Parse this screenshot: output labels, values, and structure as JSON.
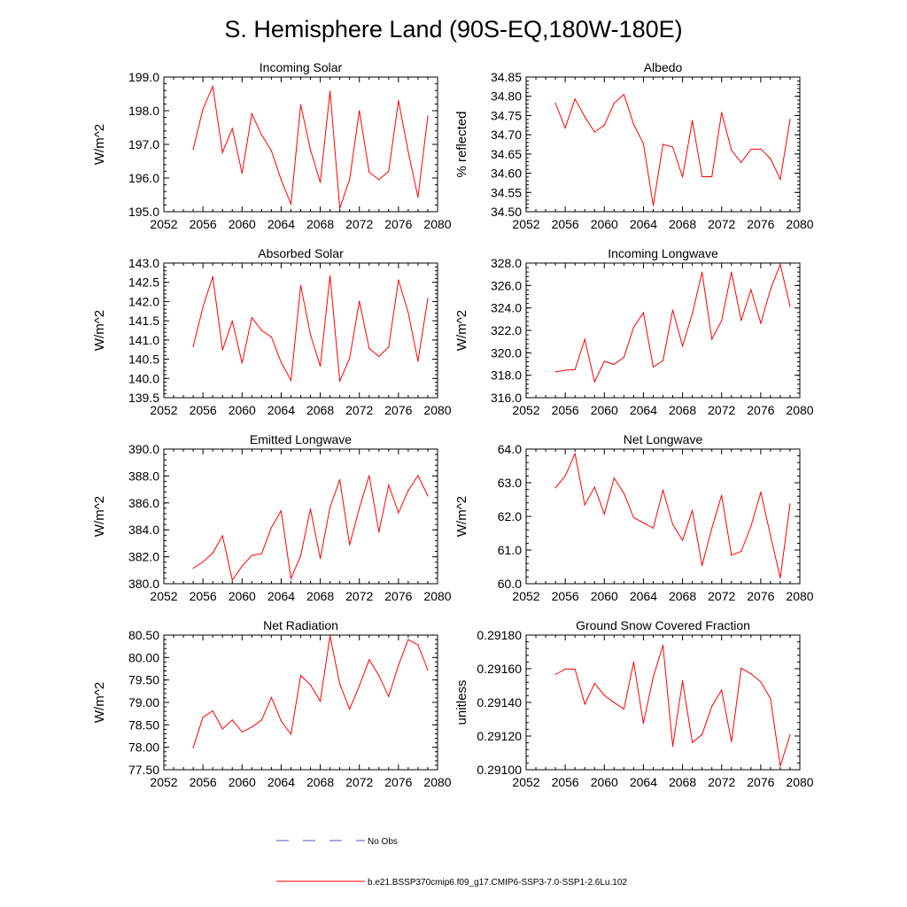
{
  "title": "S. Hemisphere Land (90S-EQ,180W-180E)",
  "line_color": "#ff0000",
  "obs_color": "#4a57c8",
  "legend": {
    "obs_label": "No Obs",
    "model_label": "b.e21.BSSP370cmip6.f09_g17.CMIP6-SSP3-7.0-SSP1-2.6Lu.102"
  },
  "chart_data": [
    {
      "type": "line",
      "title": "Incoming Solar",
      "ylabel": "W/m^2",
      "xlim": [
        2052,
        2080
      ],
      "xticks": [
        2052,
        2056,
        2060,
        2064,
        2068,
        2072,
        2076,
        2080
      ],
      "ylim": [
        195.0,
        199.0
      ],
      "yticks": [
        "195.0",
        "196.0",
        "197.0",
        "198.0",
        "199.0"
      ],
      "yminor": 0.2,
      "x": [
        2055,
        2056,
        2057,
        2058,
        2059,
        2060,
        2061,
        2062,
        2063,
        2064,
        2065,
        2066,
        2067,
        2068,
        2069,
        2070,
        2071,
        2072,
        2073,
        2074,
        2075,
        2076,
        2077,
        2078,
        2079
      ],
      "values": [
        196.85,
        198.05,
        198.72,
        196.76,
        197.47,
        196.14,
        197.91,
        197.28,
        196.81,
        195.95,
        195.22,
        198.18,
        196.84,
        195.87,
        198.58,
        195.1,
        195.96,
        198.0,
        196.17,
        195.95,
        196.2,
        198.3,
        196.78,
        195.43,
        197.84
      ]
    },
    {
      "type": "line",
      "title": "Albedo",
      "ylabel": "% reflected",
      "xlim": [
        2052,
        2080
      ],
      "xticks": [
        2052,
        2056,
        2060,
        2064,
        2068,
        2072,
        2076,
        2080
      ],
      "ylim": [
        34.5,
        34.85
      ],
      "yticks": [
        "34.50",
        "34.55",
        "34.60",
        "34.65",
        "34.70",
        "34.75",
        "34.80",
        "34.85"
      ],
      "yminor": 0.01,
      "x": [
        2055,
        2056,
        2057,
        2058,
        2059,
        2060,
        2061,
        2062,
        2063,
        2064,
        2065,
        2066,
        2067,
        2068,
        2069,
        2070,
        2071,
        2072,
        2073,
        2074,
        2075,
        2076,
        2077,
        2078,
        2079
      ],
      "values": [
        34.782,
        34.718,
        34.793,
        34.747,
        34.707,
        34.725,
        34.782,
        34.805,
        34.727,
        34.677,
        34.516,
        34.675,
        34.668,
        34.59,
        34.737,
        34.591,
        34.591,
        34.758,
        34.66,
        34.628,
        34.662,
        34.663,
        34.638,
        34.584,
        34.74
      ]
    },
    {
      "type": "line",
      "title": "Absorbed Solar",
      "ylabel": "W/m^2",
      "xlim": [
        2052,
        2080
      ],
      "xticks": [
        2052,
        2056,
        2060,
        2064,
        2068,
        2072,
        2076,
        2080
      ],
      "ylim": [
        139.5,
        143.0
      ],
      "yticks": [
        "139.5",
        "140.0",
        "140.5",
        "141.0",
        "141.5",
        "142.0",
        "142.5",
        "143.0"
      ],
      "yminor": 0.1,
      "x": [
        2055,
        2056,
        2057,
        2058,
        2059,
        2060,
        2061,
        2062,
        2063,
        2064,
        2065,
        2066,
        2067,
        2068,
        2069,
        2070,
        2071,
        2072,
        2073,
        2074,
        2075,
        2076,
        2077,
        2078,
        2079
      ],
      "values": [
        140.83,
        141.85,
        142.65,
        140.74,
        141.49,
        140.4,
        141.58,
        141.25,
        141.08,
        140.42,
        139.95,
        142.42,
        141.14,
        140.32,
        142.67,
        139.93,
        140.52,
        142.01,
        140.78,
        140.57,
        140.82,
        142.56,
        141.71,
        140.45,
        142.08
      ]
    },
    {
      "type": "line",
      "title": "Incoming Longwave",
      "ylabel": "W/m^2",
      "xlim": [
        2052,
        2080
      ],
      "xticks": [
        2052,
        2056,
        2060,
        2064,
        2068,
        2072,
        2076,
        2080
      ],
      "ylim": [
        316.0,
        328.0
      ],
      "yticks": [
        "316.0",
        "318.0",
        "320.0",
        "322.0",
        "324.0",
        "326.0",
        "328.0"
      ],
      "yminor": 0.4,
      "x": [
        2055,
        2056,
        2057,
        2058,
        2059,
        2060,
        2061,
        2062,
        2063,
        2064,
        2065,
        2066,
        2067,
        2068,
        2069,
        2070,
        2071,
        2072,
        2073,
        2074,
        2075,
        2076,
        2077,
        2078,
        2079
      ],
      "values": [
        318.3,
        318.45,
        318.5,
        321.2,
        317.42,
        319.24,
        318.97,
        319.6,
        322.29,
        323.57,
        318.74,
        319.3,
        323.82,
        320.61,
        323.47,
        327.19,
        321.23,
        322.86,
        327.2,
        322.87,
        325.62,
        322.63,
        325.67,
        327.89,
        324.14
      ]
    },
    {
      "type": "line",
      "title": "Emitted Longwave",
      "ylabel": "W/m^2",
      "xlim": [
        2052,
        2080
      ],
      "xticks": [
        2052,
        2056,
        2060,
        2064,
        2068,
        2072,
        2076,
        2080
      ],
      "ylim": [
        380.0,
        390.0
      ],
      "yticks": [
        "380.0",
        "382.0",
        "384.0",
        "386.0",
        "388.0",
        "390.0"
      ],
      "yminor": 0.4,
      "x": [
        2055,
        2056,
        2057,
        2058,
        2059,
        2060,
        2061,
        2062,
        2063,
        2064,
        2065,
        2066,
        2067,
        2068,
        2069,
        2070,
        2071,
        2072,
        2073,
        2074,
        2075,
        2076,
        2077,
        2078,
        2079
      ],
      "values": [
        381.15,
        381.62,
        382.28,
        383.56,
        380.26,
        381.3,
        382.1,
        382.23,
        384.17,
        385.42,
        380.38,
        382.09,
        385.55,
        381.87,
        385.68,
        387.72,
        382.88,
        385.61,
        388.03,
        383.84,
        387.32,
        385.27,
        386.93,
        388.03,
        386.52
      ]
    },
    {
      "type": "line",
      "title": "Net Longwave",
      "ylabel": "W/m^2",
      "xlim": [
        2052,
        2080
      ],
      "xticks": [
        2052,
        2056,
        2060,
        2064,
        2068,
        2072,
        2076,
        2080
      ],
      "ylim": [
        60.0,
        64.0
      ],
      "yticks": [
        "60.0",
        "61.0",
        "62.0",
        "63.0",
        "64.0"
      ],
      "yminor": 0.2,
      "x": [
        2055,
        2056,
        2057,
        2058,
        2059,
        2060,
        2061,
        2062,
        2063,
        2064,
        2065,
        2066,
        2067,
        2068,
        2069,
        2070,
        2071,
        2072,
        2073,
        2074,
        2075,
        2076,
        2077,
        2078,
        2079
      ],
      "values": [
        62.85,
        63.2,
        63.86,
        62.34,
        62.87,
        62.07,
        63.14,
        62.69,
        61.96,
        61.81,
        61.65,
        62.78,
        61.76,
        61.29,
        62.18,
        60.54,
        61.65,
        62.63,
        60.85,
        60.96,
        61.7,
        62.72,
        61.43,
        60.17,
        62.37
      ]
    },
    {
      "type": "line",
      "title": "Net Radiation",
      "ylabel": "W/m^2",
      "xlim": [
        2052,
        2080
      ],
      "xticks": [
        2052,
        2056,
        2060,
        2064,
        2068,
        2072,
        2076,
        2080
      ],
      "ylim": [
        77.5,
        80.5
      ],
      "yticks": [
        "77.50",
        "78.00",
        "78.50",
        "79.00",
        "79.50",
        "80.00",
        "80.50"
      ],
      "yminor": 0.1,
      "x": [
        2055,
        2056,
        2057,
        2058,
        2059,
        2060,
        2061,
        2062,
        2063,
        2064,
        2065,
        2066,
        2067,
        2068,
        2069,
        2070,
        2071,
        2072,
        2073,
        2074,
        2075,
        2076,
        2077,
        2078,
        2079
      ],
      "values": [
        77.99,
        78.67,
        78.81,
        78.41,
        78.61,
        78.34,
        78.45,
        78.61,
        79.11,
        78.59,
        78.29,
        79.6,
        79.39,
        79.03,
        80.48,
        79.41,
        78.85,
        79.37,
        79.95,
        79.6,
        79.13,
        79.83,
        80.4,
        80.28,
        79.72
      ]
    },
    {
      "type": "line",
      "title": "Ground Snow Covered Fraction",
      "ylabel": "unitless",
      "xlim": [
        2052,
        2080
      ],
      "xticks": [
        2052,
        2056,
        2060,
        2064,
        2068,
        2072,
        2076,
        2080
      ],
      "ylim": [
        0.291,
        0.2918
      ],
      "yticks": [
        "0.29100",
        "0.29120",
        "0.29140",
        "0.29160",
        "0.29180"
      ],
      "yminor": 4e-05,
      "x": [
        2055,
        2056,
        2057,
        2058,
        2059,
        2060,
        2061,
        2062,
        2063,
        2064,
        2065,
        2066,
        2067,
        2068,
        2069,
        2070,
        2071,
        2072,
        2073,
        2074,
        2075,
        2076,
        2077,
        2078,
        2079
      ],
      "values": [
        0.291566,
        0.291598,
        0.291598,
        0.29139,
        0.291513,
        0.291442,
        0.291399,
        0.291361,
        0.29164,
        0.291275,
        0.29155,
        0.29174,
        0.291139,
        0.291528,
        0.291162,
        0.291209,
        0.291377,
        0.291473,
        0.291167,
        0.291603,
        0.29157,
        0.291522,
        0.291422,
        0.291022,
        0.291208
      ]
    }
  ]
}
